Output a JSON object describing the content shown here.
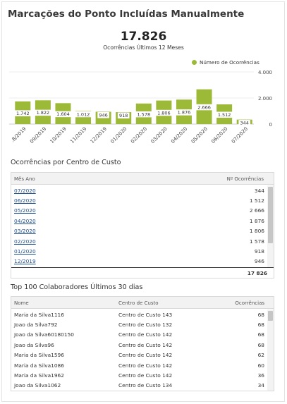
{
  "title": "Marcações do Ponto Incluídas Manualmente",
  "kpi": {
    "value": "17.826",
    "label": "Ocorrências Últimos 12 Meses"
  },
  "legend": {
    "label": "Número de Ocorrências",
    "color": "#9cba38"
  },
  "chart_data": {
    "type": "bar",
    "categories": [
      "08/2019",
      "09/2019",
      "10/2019",
      "11/2019",
      "12/2019",
      "01/2020",
      "02/2020",
      "03/2020",
      "04/2020",
      "05/2020",
      "06/2020",
      "07/2020"
    ],
    "visible_categories": [
      ".8/2019",
      "09/2019",
      "10/2019",
      "11/2019",
      "12/2019",
      "01/2020",
      "02/2020",
      "03/2020",
      "04/2020",
      "05/2020",
      "06/2020",
      "07/2020"
    ],
    "values": [
      1742,
      1822,
      1604,
      1012,
      946,
      918,
      1578,
      1806,
      1876,
      2666,
      1512,
      344
    ],
    "data_labels": [
      "1.742",
      "1.822",
      "1.604",
      "1.012",
      "946",
      "918",
      "1.578",
      "1.806",
      "1.876",
      "2.666",
      "1.512",
      "344"
    ],
    "series": [
      {
        "name": "Número de Ocorrências",
        "values": [
          1742,
          1822,
          1604,
          1012,
          946,
          918,
          1578,
          1806,
          1876,
          2666,
          1512,
          344
        ]
      }
    ],
    "yticks": [
      0,
      2000,
      4000
    ],
    "ytick_labels": [
      "0",
      "2.000",
      "4.000"
    ],
    "ylim": [
      0,
      4000
    ],
    "grid": true,
    "legend_position": "top-right",
    "bar_color": "#9cba38"
  },
  "centro": {
    "section_title": "Ocorrências por Centro de Custo",
    "headers": {
      "month": "Mês Ano",
      "count": "Nº Ocorrências"
    },
    "rows": [
      {
        "month": "07/2020",
        "count": "344"
      },
      {
        "month": "06/2020",
        "count": "1 512"
      },
      {
        "month": "05/2020",
        "count": "2 666"
      },
      {
        "month": "04/2020",
        "count": "1 876"
      },
      {
        "month": "03/2020",
        "count": "1 806"
      },
      {
        "month": "02/2020",
        "count": "1 578"
      },
      {
        "month": "01/2020",
        "count": "918"
      },
      {
        "month": "12/2019",
        "count": "946"
      }
    ],
    "total": "17 826"
  },
  "top100": {
    "section_title": "Top 100 Colaboradores Últimos 30 dias",
    "headers": {
      "name": "Nome",
      "center": "Centro de Custo",
      "count": "Ocorrências"
    },
    "rows": [
      {
        "name": "Maria da Silva1116",
        "center": "Centro de Custo 143",
        "count": "68"
      },
      {
        "name": "Joao da Silva792",
        "center": "Centro de Custo 132",
        "count": "68"
      },
      {
        "name": "Joao da Silva60180150",
        "center": "Centro de Custo 142",
        "count": "68"
      },
      {
        "name": "Joao da Silva96",
        "center": "Centro de Custo 142",
        "count": "68"
      },
      {
        "name": "Maria da Silva1596",
        "center": "Centro de Custo 142",
        "count": "62"
      },
      {
        "name": "Maria da Silva1086",
        "center": "Centro de Custo 142",
        "count": "60"
      },
      {
        "name": "Maria da Silva1962",
        "center": "Centro de Custo 142",
        "count": "36"
      },
      {
        "name": "Joao da Silva1062",
        "center": "Centro de Custo 134",
        "count": "34"
      }
    ]
  }
}
